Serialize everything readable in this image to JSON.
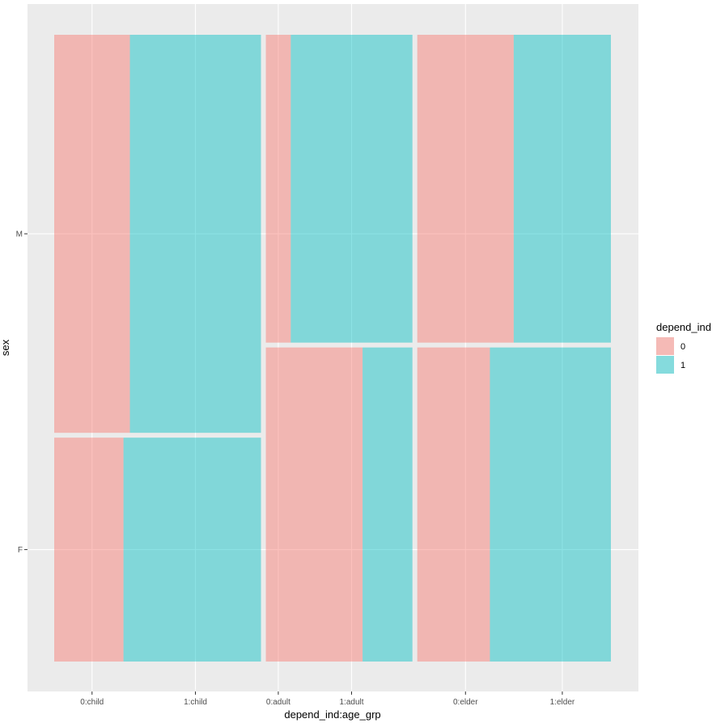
{
  "chart_data": {
    "type": "mosaic",
    "xlabel": "depend_ind:age_grp",
    "ylabel": "sex",
    "x_tick_labels": [
      "0:child",
      "1:child",
      "0:adult",
      "1:adult",
      "0:elder",
      "1:elder"
    ],
    "y_tick_labels": [
      "M",
      "F"
    ],
    "legend": {
      "title": "depend_ind",
      "entries": [
        {
          "label": "0",
          "color": "#F8766D"
        },
        {
          "label": "1",
          "color": "#00BFC4"
        }
      ],
      "placement": "right"
    },
    "colors": {
      "panel_bg": "#EBEBEB",
      "grid": "#FFFFFF",
      "fill_opacity": 0.45
    },
    "grid": true,
    "columns": [
      {
        "age_grp": "child",
        "width_share": 0.378,
        "cells": [
          {
            "sex": "M",
            "height_share": 0.64,
            "depend_0_share": 0.366,
            "depend_1_share": 0.634
          },
          {
            "sex": "F",
            "height_share": 0.36,
            "depend_0_share": 0.335,
            "depend_1_share": 0.665
          }
        ]
      },
      {
        "age_grp": "adult",
        "width_share": 0.268,
        "cells": [
          {
            "sex": "M",
            "height_share": 0.495,
            "depend_0_share": 0.17,
            "depend_1_share": 0.83
          },
          {
            "sex": "F",
            "height_share": 0.505,
            "depend_0_share": 0.66,
            "depend_1_share": 0.34
          }
        ]
      },
      {
        "age_grp": "elder",
        "width_share": 0.354,
        "cells": [
          {
            "sex": "M",
            "height_share": 0.495,
            "depend_0_share": 0.498,
            "depend_1_share": 0.502
          },
          {
            "sex": "F",
            "height_share": 0.505,
            "depend_0_share": 0.375,
            "depend_1_share": 0.625
          }
        ]
      }
    ]
  }
}
